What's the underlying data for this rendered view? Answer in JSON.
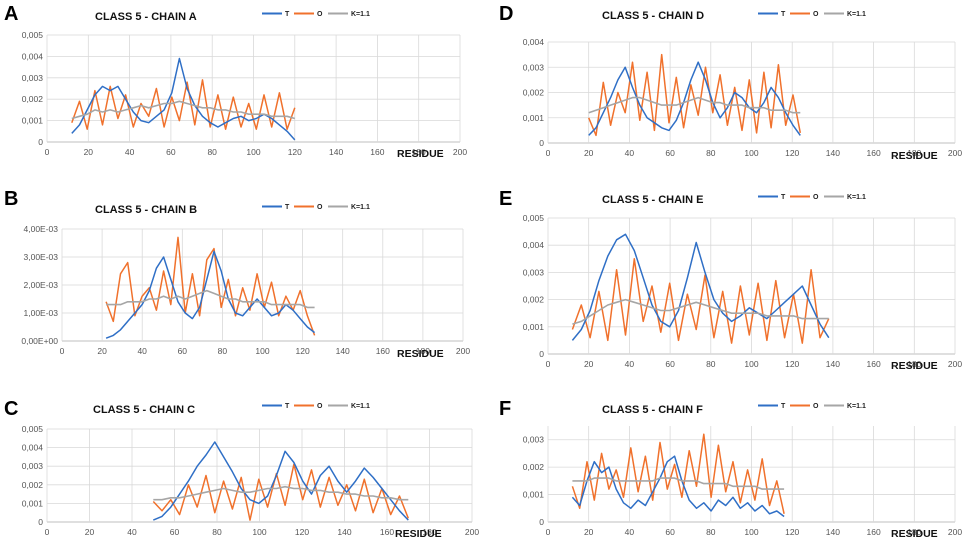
{
  "figure": {
    "colors": {
      "T": "#2f6fc6",
      "O": "#f0712c",
      "K": "#a6a6a6"
    },
    "legend": [
      "T",
      "O",
      "K=1.1"
    ],
    "xlabel": "RESIDUE"
  },
  "chart_data": [
    {
      "panel": "A",
      "type": "line",
      "title": "CLASS 5 - CHAIN A",
      "xlabel": "RESIDUE",
      "ylabel": "",
      "xlim": [
        0,
        200
      ],
      "xticks": [
        0,
        20,
        40,
        60,
        80,
        100,
        120,
        140,
        160,
        180,
        200
      ],
      "ylim": [
        0,
        0.005
      ],
      "yticks": [
        0,
        0.001,
        0.002,
        0.003,
        0.004,
        0.005
      ],
      "ytick_labels": [
        "0",
        "0,001",
        "0,002",
        "0,003",
        "0,004",
        "0,005"
      ],
      "x_start": 12,
      "x_end": 120,
      "series": [
        {
          "name": "T",
          "values": [
            0.0004,
            0.0008,
            0.0015,
            0.0022,
            0.0026,
            0.0024,
            0.0026,
            0.002,
            0.0014,
            0.001,
            0.0009,
            0.0012,
            0.0015,
            0.0023,
            0.0039,
            0.0025,
            0.0017,
            0.0012,
            0.0009,
            0.0007,
            0.0009,
            0.0011,
            0.0012,
            0.001,
            0.0011,
            0.0013,
            0.0011,
            0.0008,
            0.0005,
            0.0001
          ]
        },
        {
          "name": "O",
          "values": [
            0.0009,
            0.0019,
            0.0006,
            0.0024,
            0.0008,
            0.0026,
            0.0011,
            0.0022,
            0.0007,
            0.0018,
            0.0012,
            0.0025,
            0.0007,
            0.0021,
            0.001,
            0.0028,
            0.0008,
            0.0029,
            0.0007,
            0.0022,
            0.0006,
            0.0021,
            0.0007,
            0.0018,
            0.0006,
            0.0022,
            0.0007,
            0.0023,
            0.0006,
            0.0016
          ]
        },
        {
          "name": "K=1.1",
          "values": [
            0.0011,
            0.0012,
            0.0013,
            0.0015,
            0.0014,
            0.0015,
            0.0014,
            0.0015,
            0.0016,
            0.0017,
            0.0016,
            0.0017,
            0.0018,
            0.0018,
            0.0019,
            0.0018,
            0.0017,
            0.0016,
            0.0016,
            0.0015,
            0.0015,
            0.0014,
            0.0014,
            0.0013,
            0.0013,
            0.0013,
            0.0012,
            0.0012,
            0.0012,
            0.0011
          ]
        }
      ]
    },
    {
      "panel": "B",
      "type": "line",
      "title": "CLASS 5 - CHAIN B",
      "xlabel": "RESIDUE",
      "ylabel": "",
      "xlim": [
        0,
        200
      ],
      "xticks": [
        0,
        20,
        40,
        60,
        80,
        100,
        120,
        140,
        160,
        180,
        200
      ],
      "ylim": [
        0,
        0.004
      ],
      "yticks": [
        0,
        0.001,
        0.002,
        0.003,
        0.004
      ],
      "ytick_labels": [
        "0,00E+00",
        "1,00E-03",
        "2,00E-03",
        "3,00E-03",
        "4,00E-03"
      ],
      "x_start": 22,
      "x_end": 126,
      "series": [
        {
          "name": "T",
          "values": [
            0.0001,
            0.0002,
            0.0004,
            0.0007,
            0.001,
            0.0013,
            0.0018,
            0.0026,
            0.003,
            0.0022,
            0.0014,
            0.001,
            0.0008,
            0.0012,
            0.0022,
            0.0032,
            0.0025,
            0.0015,
            0.001,
            0.0009,
            0.0012,
            0.0015,
            0.0012,
            0.0009,
            0.001,
            0.0013,
            0.0011,
            0.0008,
            0.0005,
            0.0003
          ]
        },
        {
          "name": "O",
          "values": [
            0.0014,
            0.0007,
            0.0024,
            0.0028,
            0.0009,
            0.0016,
            0.0019,
            0.0011,
            0.0025,
            0.0013,
            0.0037,
            0.001,
            0.0024,
            0.0009,
            0.0029,
            0.0033,
            0.0012,
            0.0022,
            0.0009,
            0.0019,
            0.0011,
            0.0024,
            0.0012,
            0.0021,
            0.0009,
            0.0016,
            0.0011,
            0.0018,
            0.0009,
            0.0002
          ]
        },
        {
          "name": "K=1.1",
          "values": [
            0.0013,
            0.0013,
            0.0013,
            0.0014,
            0.0014,
            0.0014,
            0.0015,
            0.0015,
            0.0016,
            0.0015,
            0.0016,
            0.0015,
            0.0016,
            0.0017,
            0.0018,
            0.0017,
            0.0016,
            0.0015,
            0.0015,
            0.0014,
            0.0014,
            0.0014,
            0.0014,
            0.0013,
            0.0013,
            0.0013,
            0.0013,
            0.0013,
            0.0012,
            0.0012
          ]
        }
      ]
    },
    {
      "panel": "C",
      "type": "line",
      "title": "CLASS 5 - CHAIN C",
      "xlabel": "RESIDUE",
      "ylabel": "",
      "xlim": [
        0,
        200
      ],
      "xticks": [
        0,
        20,
        40,
        60,
        80,
        100,
        120,
        140,
        160,
        180,
        200
      ],
      "ylim": [
        0,
        0.005
      ],
      "yticks": [
        0,
        0.001,
        0.002,
        0.003,
        0.004,
        0.005
      ],
      "ytick_labels": [
        "0",
        "0,001",
        "0,002",
        "0,003",
        "0,004",
        "0,005"
      ],
      "x_start": 50,
      "x_end": 170,
      "series": [
        {
          "name": "T",
          "values": [
            0.0001,
            0.0003,
            0.0008,
            0.0015,
            0.0022,
            0.003,
            0.0036,
            0.0043,
            0.0035,
            0.0027,
            0.0018,
            0.0012,
            0.001,
            0.0014,
            0.0025,
            0.0038,
            0.0032,
            0.0022,
            0.0015,
            0.0025,
            0.003,
            0.0022,
            0.0016,
            0.0022,
            0.0029,
            0.0024,
            0.0018,
            0.0012,
            0.0006,
            0.0001
          ]
        },
        {
          "name": "O",
          "values": [
            0.0011,
            0.0006,
            0.0012,
            0.0004,
            0.002,
            0.0008,
            0.0025,
            0.0005,
            0.0022,
            0.0007,
            0.0024,
            0.0001,
            0.0023,
            0.0008,
            0.0026,
            0.0009,
            0.0031,
            0.0012,
            0.0028,
            0.0008,
            0.0024,
            0.0009,
            0.002,
            0.0006,
            0.0023,
            0.0005,
            0.0018,
            0.0004,
            0.0014,
            0.0002
          ]
        },
        {
          "name": "K=1.1",
          "values": [
            0.0012,
            0.0012,
            0.0013,
            0.0013,
            0.0014,
            0.0015,
            0.0016,
            0.0017,
            0.0018,
            0.0017,
            0.0016,
            0.0016,
            0.0017,
            0.0018,
            0.0018,
            0.0019,
            0.0018,
            0.0018,
            0.0017,
            0.0017,
            0.0016,
            0.0016,
            0.0015,
            0.0015,
            0.0014,
            0.0014,
            0.0013,
            0.0013,
            0.0012,
            0.0012
          ]
        }
      ]
    },
    {
      "panel": "D",
      "type": "line",
      "title": "CLASS 5 - CHAIN D",
      "xlabel": "RESIDUE",
      "ylabel": "",
      "xlim": [
        0,
        200
      ],
      "xticks": [
        0,
        20,
        40,
        60,
        80,
        100,
        120,
        140,
        160,
        180,
        200
      ],
      "ylim": [
        0,
        0.004
      ],
      "yticks": [
        0,
        0.001,
        0.002,
        0.003,
        0.004
      ],
      "ytick_labels": [
        "0",
        "0,001",
        "0,002",
        "0,003",
        "0,004"
      ],
      "x_start": 20,
      "x_end": 124,
      "series": [
        {
          "name": "T",
          "values": [
            0.0003,
            0.0006,
            0.0012,
            0.0018,
            0.0025,
            0.003,
            0.0022,
            0.0015,
            0.001,
            0.0008,
            0.0006,
            0.0005,
            0.0009,
            0.0016,
            0.0025,
            0.0032,
            0.0025,
            0.0016,
            0.001,
            0.0014,
            0.002,
            0.0018,
            0.0014,
            0.0012,
            0.0016,
            0.0022,
            0.0018,
            0.0012,
            0.0007,
            0.0003
          ]
        },
        {
          "name": "O",
          "values": [
            0.001,
            0.0003,
            0.0024,
            0.0007,
            0.002,
            0.0012,
            0.0032,
            0.0009,
            0.0028,
            0.0005,
            0.0035,
            0.0008,
            0.0026,
            0.0006,
            0.0023,
            0.0011,
            0.003,
            0.0012,
            0.0027,
            0.0007,
            0.0022,
            0.0005,
            0.0025,
            0.0004,
            0.0028,
            0.0006,
            0.0031,
            0.0007,
            0.0019,
            0.0004
          ]
        },
        {
          "name": "K=1.1",
          "values": [
            0.0012,
            0.0013,
            0.0014,
            0.0015,
            0.0016,
            0.0017,
            0.0018,
            0.0018,
            0.0017,
            0.0016,
            0.0015,
            0.0015,
            0.0015,
            0.0016,
            0.0017,
            0.0018,
            0.0017,
            0.0016,
            0.0016,
            0.0015,
            0.0015,
            0.0015,
            0.0014,
            0.0014,
            0.0014,
            0.0013,
            0.0013,
            0.0013,
            0.0012,
            0.0012
          ]
        }
      ]
    },
    {
      "panel": "E",
      "type": "line",
      "title": "CLASS 5 - CHAIN E",
      "xlabel": "RESIDUE",
      "ylabel": "",
      "xlim": [
        0,
        200
      ],
      "xticks": [
        0,
        20,
        40,
        60,
        80,
        100,
        120,
        140,
        160,
        180,
        200
      ],
      "ylim": [
        0,
        0.005
      ],
      "yticks": [
        0,
        0.001,
        0.002,
        0.003,
        0.004,
        0.005
      ],
      "ytick_labels": [
        "0",
        "0,001",
        "0,002",
        "0,003",
        "0,004",
        "0,005"
      ],
      "x_start": 12,
      "x_end": 138,
      "series": [
        {
          "name": "T",
          "values": [
            0.0005,
            0.0009,
            0.0016,
            0.0027,
            0.0036,
            0.0042,
            0.0044,
            0.0038,
            0.0028,
            0.0018,
            0.0012,
            0.001,
            0.0016,
            0.0028,
            0.0041,
            0.003,
            0.002,
            0.0015,
            0.0012,
            0.0014,
            0.0017,
            0.0015,
            0.0013,
            0.0016,
            0.0019,
            0.0022,
            0.0025,
            0.0018,
            0.0011,
            0.0006
          ]
        },
        {
          "name": "O",
          "values": [
            0.0009,
            0.0018,
            0.0006,
            0.0023,
            0.0005,
            0.0031,
            0.0007,
            0.0035,
            0.0012,
            0.0025,
            0.0008,
            0.0026,
            0.0005,
            0.0022,
            0.0009,
            0.0029,
            0.0006,
            0.0023,
            0.0004,
            0.0025,
            0.0007,
            0.0026,
            0.0005,
            0.0027,
            0.0006,
            0.0022,
            0.0004,
            0.0031,
            0.0006,
            0.0013
          ]
        },
        {
          "name": "K=1.1",
          "values": [
            0.0011,
            0.0012,
            0.0014,
            0.0016,
            0.0018,
            0.0019,
            0.002,
            0.0019,
            0.0018,
            0.0017,
            0.0016,
            0.0016,
            0.0017,
            0.0018,
            0.0019,
            0.0018,
            0.0017,
            0.0016,
            0.0015,
            0.0015,
            0.0015,
            0.0015,
            0.0014,
            0.0014,
            0.0014,
            0.0014,
            0.0013,
            0.0013,
            0.0013,
            0.0013
          ]
        }
      ]
    },
    {
      "panel": "F",
      "type": "line",
      "title": "CLASS 5 - CHAIN F",
      "xlabel": "RESIDUE",
      "ylabel": "",
      "xlim": [
        0,
        200
      ],
      "xticks": [
        0,
        20,
        40,
        60,
        80,
        100,
        120,
        140,
        160,
        180,
        200
      ],
      "ylim": [
        0,
        0.0035
      ],
      "yticks": [
        0,
        0.001,
        0.002,
        0.003
      ],
      "ytick_labels": [
        "0",
        "0,001",
        "0,002",
        "0,003"
      ],
      "x_start": 12,
      "x_end": 116,
      "series": [
        {
          "name": "T",
          "values": [
            0.0009,
            0.0006,
            0.0015,
            0.0022,
            0.0018,
            0.002,
            0.0012,
            0.0007,
            0.0005,
            0.0008,
            0.0006,
            0.0011,
            0.0016,
            0.0022,
            0.0024,
            0.0015,
            0.0008,
            0.0005,
            0.0007,
            0.0004,
            0.0008,
            0.0006,
            0.0009,
            0.0005,
            0.0007,
            0.0004,
            0.0006,
            0.0003,
            0.0004,
            0.0002
          ]
        },
        {
          "name": "O",
          "values": [
            0.0013,
            0.0005,
            0.0022,
            0.0008,
            0.0025,
            0.0012,
            0.0019,
            0.0009,
            0.0027,
            0.0011,
            0.0024,
            0.0008,
            0.0029,
            0.0012,
            0.0021,
            0.0009,
            0.0026,
            0.0013,
            0.0032,
            0.0009,
            0.0028,
            0.0011,
            0.0022,
            0.0007,
            0.0019,
            0.0008,
            0.0023,
            0.0006,
            0.0015,
            0.0003
          ]
        },
        {
          "name": "K=1.1",
          "values": [
            0.0015,
            0.0015,
            0.0015,
            0.0016,
            0.0016,
            0.0016,
            0.0015,
            0.0015,
            0.0015,
            0.0015,
            0.0015,
            0.0015,
            0.0016,
            0.0016,
            0.0016,
            0.0015,
            0.0015,
            0.0015,
            0.0014,
            0.0014,
            0.0014,
            0.0014,
            0.0013,
            0.0013,
            0.0013,
            0.0013,
            0.0012,
            0.0012,
            0.0012,
            0.0012
          ]
        }
      ]
    }
  ]
}
